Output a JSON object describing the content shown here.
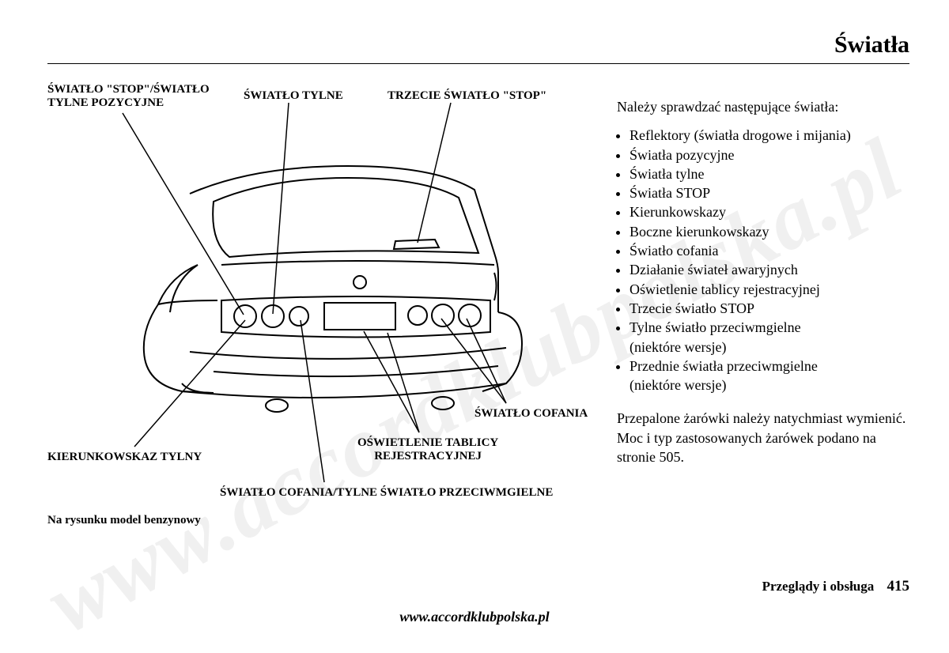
{
  "title": "Światła",
  "watermark": "www.accordklubpolska.pl",
  "footer_url": "www.accordklubpolska.pl",
  "footer_section": "Przeglądy i obsługa",
  "page_number": "415",
  "diagram": {
    "labels": {
      "stop_position": "ŚWIATŁO \"STOP\"/ŚWIATŁO\nTYLNE POZYCYJNE",
      "tail": "ŚWIATŁO TYLNE",
      "third_stop": "TRZECIE ŚWIATŁO \"STOP\"",
      "reverse": "ŚWIATŁO COFANIA",
      "plate": "OŚWIETLENIE TABLICY\nREJESTRACYJNEJ",
      "turn_rear": "KIERUNKOWSKAZ TYLNY",
      "reverse_fog": "ŚWIATŁO COFANIA/TYLNE ŚWIATŁO PRZECIWMGIELNE",
      "caption": "Na rysunku model benzynowy"
    },
    "stroke_color": "#000000",
    "label_fontsize": 15
  },
  "text": {
    "intro": "Należy sprawdzać następujące światła:",
    "bullets": [
      "Reflektory (światła drogowe i mijania)",
      "Światła pozycyjne",
      "Światła tylne",
      "Światła STOP",
      "Kierunkowskazy",
      "Boczne kierunkowskazy",
      "Światło cofania",
      "Działanie świateł awaryjnych",
      "Oświetlenie tablicy rejestracyjnej",
      "Trzecie światło STOP",
      "Tylne światło przeciwmgielne\n(niektóre wersje)",
      "Przednie światła przeciwmgielne\n(niektóre wersje)"
    ],
    "closing1": "Przepalone żarówki należy natychmiast wymienić.",
    "closing2": "Moc i typ zastosowanych żarówek podano na stronie 505."
  }
}
